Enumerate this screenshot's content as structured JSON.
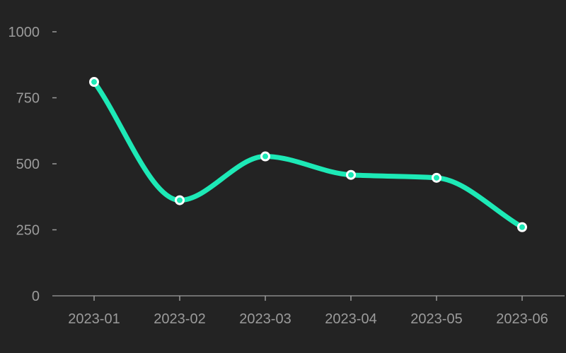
{
  "chart_data": {
    "type": "line",
    "title": "",
    "xlabel": "",
    "ylabel": "",
    "categories": [
      "2023-01",
      "2023-02",
      "2023-03",
      "2023-04",
      "2023-05",
      "2023-06"
    ],
    "y_ticks": [
      "0",
      "250",
      "500",
      "750",
      "1000"
    ],
    "ylim": [
      0,
      1000
    ],
    "grid": false,
    "smooth": true,
    "series": [
      {
        "values": [
          810,
          362,
          528,
          458,
          447,
          260
        ]
      }
    ],
    "colors": {
      "line": "#1de9b6",
      "marker_fill": "#1de9b6",
      "marker_stroke": "#ffffff",
      "axis": "#8a8a8a",
      "tick_label": "#9b9b9b",
      "background": "#232323"
    }
  }
}
